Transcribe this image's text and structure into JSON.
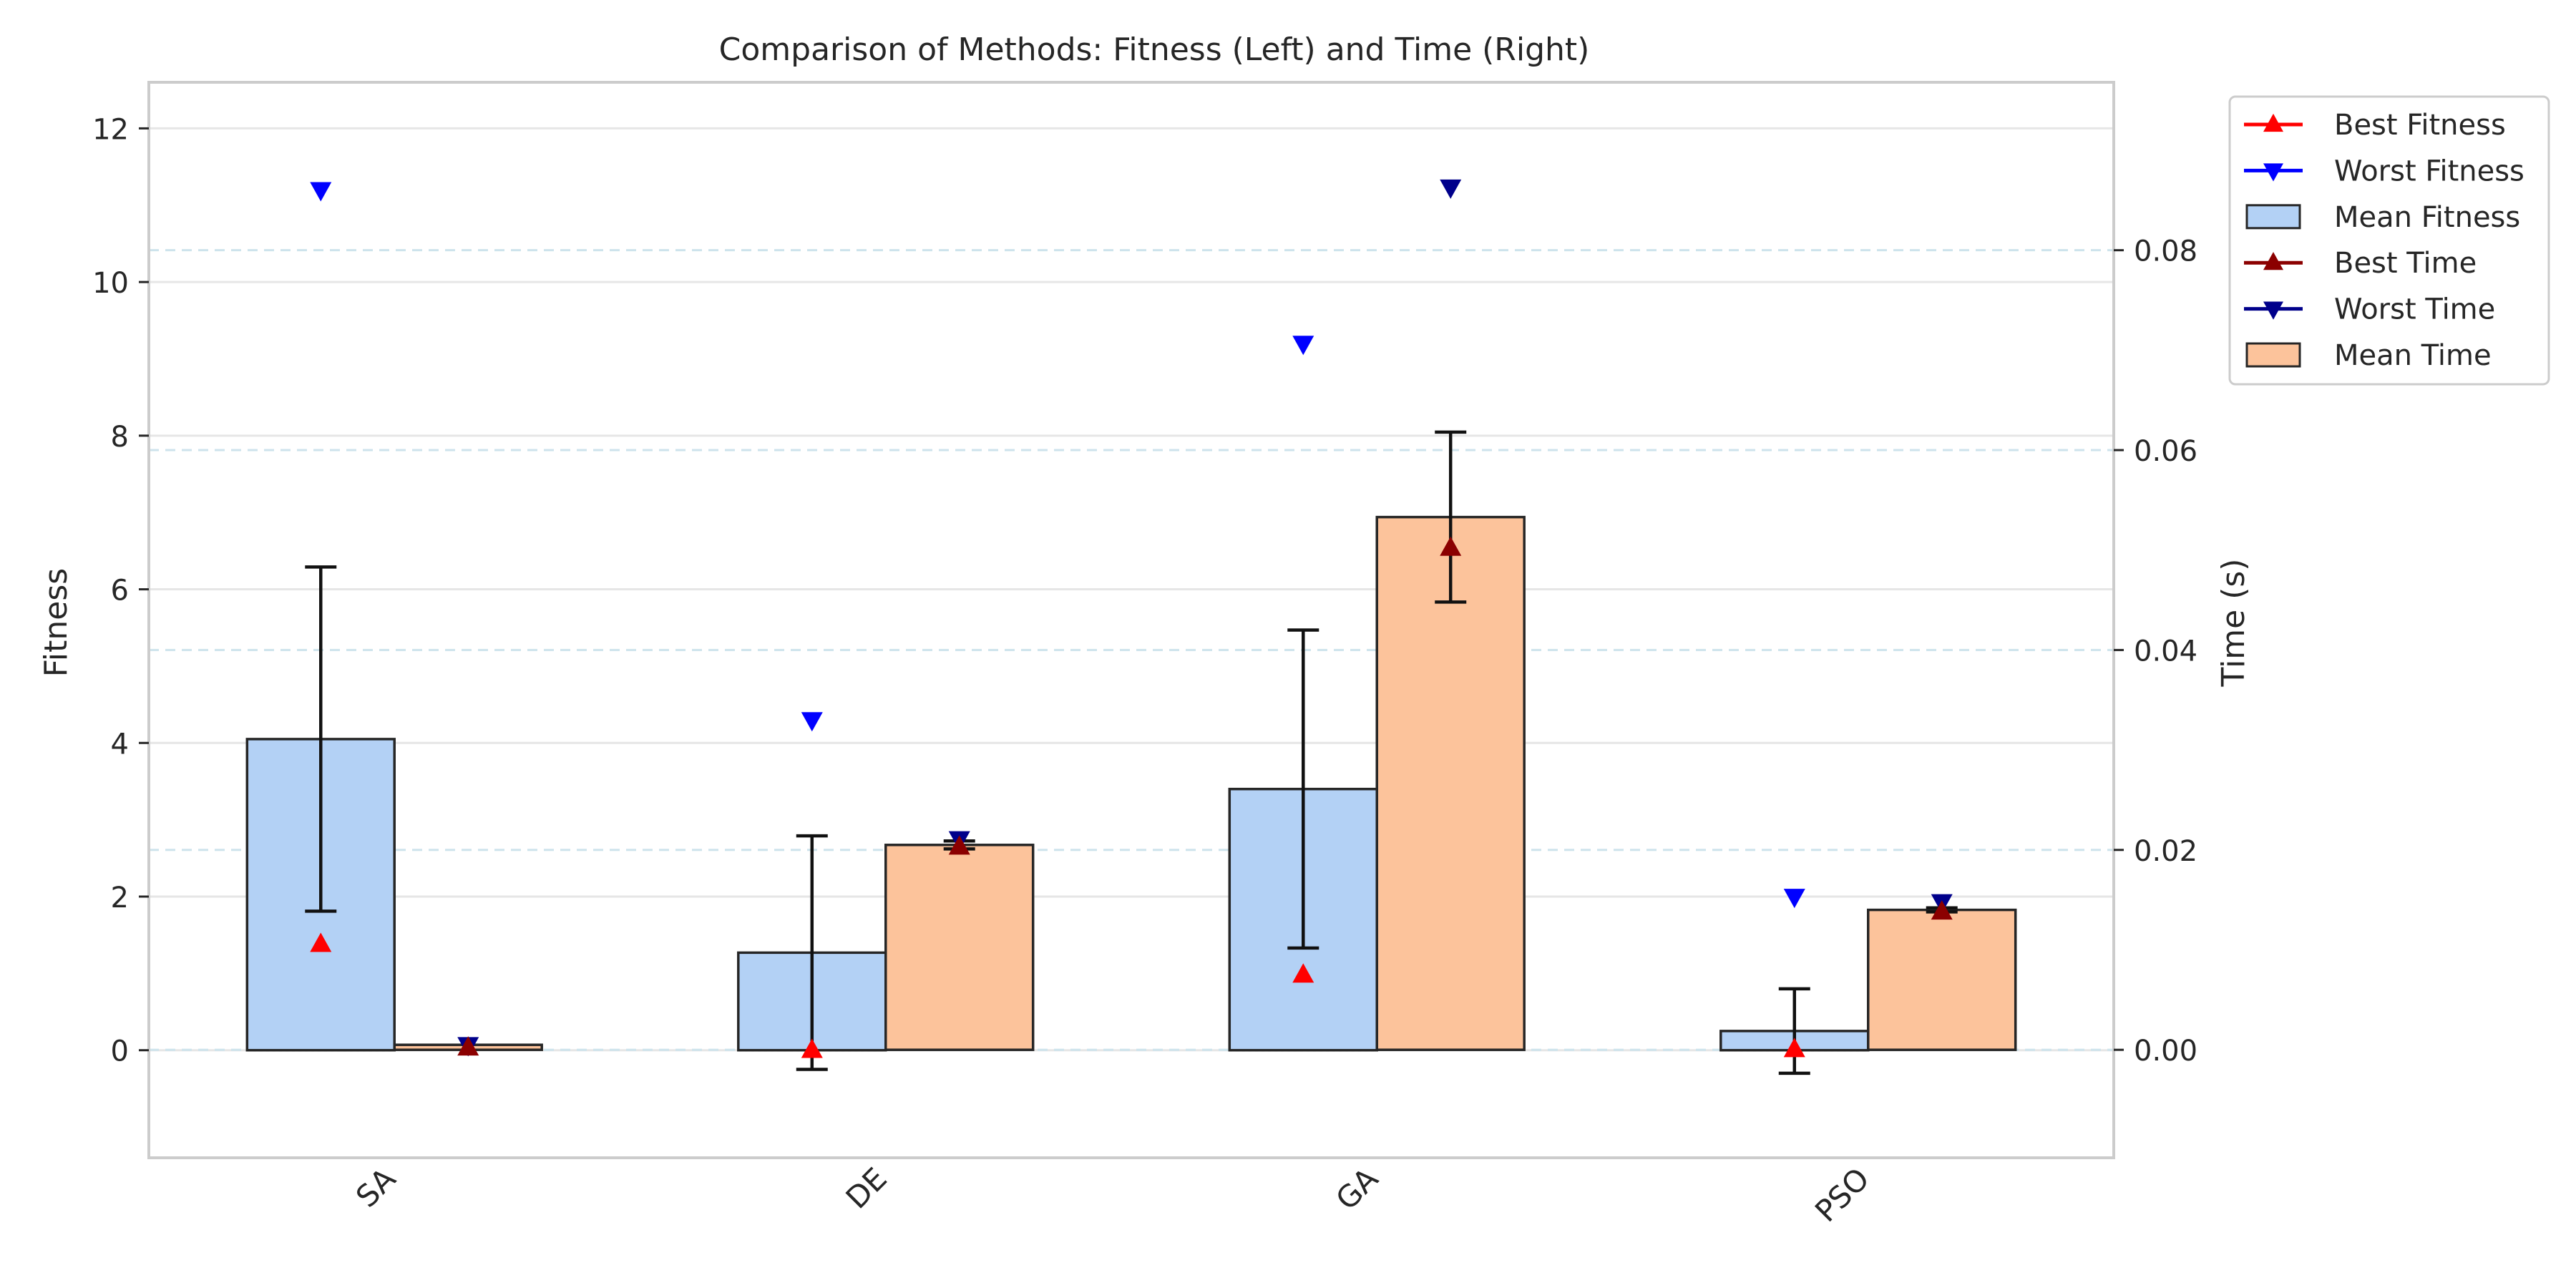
{
  "chart_data": {
    "type": "bar",
    "title": "Comparison of Methods: Fitness (Left) and Time (Right)",
    "categories": [
      "SA",
      "DE",
      "GA",
      "PSO"
    ],
    "left_axis": {
      "label": "Fitness",
      "ylim": [
        -1.4,
        12.6
      ],
      "ticks": [
        "0",
        "2",
        "4",
        "6",
        "8",
        "10",
        "12"
      ]
    },
    "right_axis": {
      "label": "Time (s)",
      "ylim": [
        -0.0108,
        0.0968
      ],
      "ticks": [
        "0.00",
        "0.02",
        "0.04",
        "0.06",
        "0.08"
      ]
    },
    "fitness": {
      "mean": [
        4.05,
        1.27,
        3.4,
        0.25
      ],
      "error": [
        2.24,
        1.52,
        2.07,
        0.55
      ],
      "best": [
        1.38,
        0.0,
        0.98,
        0.01
      ],
      "worst": [
        11.2,
        4.3,
        9.2,
        2.0
      ]
    },
    "time": {
      "mean": [
        0.0005,
        0.0205,
        0.0533,
        0.014
      ],
      "error": [
        0.0,
        0.0004,
        0.0085,
        0.0002
      ],
      "best": [
        0.0002,
        0.0203,
        0.0502,
        0.0138
      ],
      "worst": [
        0.0005,
        0.0211,
        0.0863,
        0.0148
      ]
    },
    "legend": {
      "position": "upper-right-outside",
      "entries": [
        {
          "label": "Best Fitness",
          "color": "#ff0000",
          "marker": "triangle-up",
          "kind": "line"
        },
        {
          "label": "Worst Fitness",
          "color": "#0000ff",
          "marker": "triangle-down",
          "kind": "line"
        },
        {
          "label": "Mean Fitness",
          "color": "#b3d1f5",
          "kind": "patch"
        },
        {
          "label": "Best Time",
          "color": "#8b0000",
          "marker": "triangle-up",
          "kind": "line"
        },
        {
          "label": "Worst Time",
          "color": "#00008b",
          "marker": "triangle-down",
          "kind": "line"
        },
        {
          "label": "Mean Time",
          "color": "#fcc39b",
          "kind": "patch"
        }
      ]
    },
    "colors": {
      "fitness_bar": "#b3d1f5",
      "time_bar": "#fcc39b",
      "best_fitness": "#ff0000",
      "worst_fitness": "#0000ff",
      "best_time": "#8b0000",
      "worst_time": "#00008b",
      "grid": "#e6e6e6",
      "time_grid": "#cde3ec"
    },
    "grid": true
  }
}
